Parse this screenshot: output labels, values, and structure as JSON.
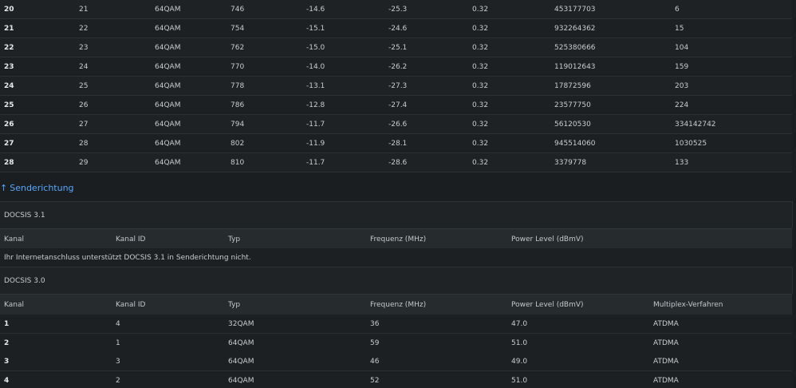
{
  "downstream_rows": [
    {
      "kanal": "20",
      "kanal_id": "21",
      "typ": "64QAM",
      "freq": "746",
      "power": "-14.6",
      "mse": "-25.3",
      "latency": "0.32",
      "corr": "453177703",
      "uncorr": "6"
    },
    {
      "kanal": "21",
      "kanal_id": "22",
      "typ": "64QAM",
      "freq": "754",
      "power": "-15.1",
      "mse": "-24.6",
      "latency": "0.32",
      "corr": "932264362",
      "uncorr": "15"
    },
    {
      "kanal": "22",
      "kanal_id": "23",
      "typ": "64QAM",
      "freq": "762",
      "power": "-15.0",
      "mse": "-25.1",
      "latency": "0.32",
      "corr": "525380666",
      "uncorr": "104"
    },
    {
      "kanal": "23",
      "kanal_id": "24",
      "typ": "64QAM",
      "freq": "770",
      "power": "-14.0",
      "mse": "-26.2",
      "latency": "0.32",
      "corr": "119012643",
      "uncorr": "159"
    },
    {
      "kanal": "24",
      "kanal_id": "25",
      "typ": "64QAM",
      "freq": "778",
      "power": "-13.1",
      "mse": "-27.3",
      "latency": "0.32",
      "corr": "17872596",
      "uncorr": "203"
    },
    {
      "kanal": "25",
      "kanal_id": "26",
      "typ": "64QAM",
      "freq": "786",
      "power": "-12.8",
      "mse": "-27.4",
      "latency": "0.32",
      "corr": "23577750",
      "uncorr": "224"
    },
    {
      "kanal": "26",
      "kanal_id": "27",
      "typ": "64QAM",
      "freq": "794",
      "power": "-11.7",
      "mse": "-26.6",
      "latency": "0.32",
      "corr": "56120530",
      "uncorr": "334142742"
    },
    {
      "kanal": "27",
      "kanal_id": "28",
      "typ": "64QAM",
      "freq": "802",
      "power": "-11.9",
      "mse": "-28.1",
      "latency": "0.32",
      "corr": "945514060",
      "uncorr": "1030525"
    },
    {
      "kanal": "28",
      "kanal_id": "29",
      "typ": "64QAM",
      "freq": "810",
      "power": "-11.7",
      "mse": "-28.6",
      "latency": "0.32",
      "corr": "3379778",
      "uncorr": "133"
    }
  ],
  "upstream": {
    "heading_arrow": "↑",
    "heading": "Senderichtung",
    "docsis31": {
      "title": "DOCSIS 3.1",
      "headers": {
        "kanal": "Kanal",
        "kanal_id": "Kanal ID",
        "typ": "Typ",
        "freq": "Frequenz (MHz)",
        "power": "Power Level (dBmV)"
      },
      "note": "Ihr Internetanschluss unterstützt DOCSIS 3.1 in Senderichtung nicht."
    },
    "docsis30": {
      "title": "DOCSIS 3.0",
      "headers": {
        "kanal": "Kanal",
        "kanal_id": "Kanal ID",
        "typ": "Typ",
        "freq": "Frequenz (MHz)",
        "power": "Power Level (dBmV)",
        "mux": "Multiplex-Verfahren"
      },
      "rows": [
        {
          "kanal": "1",
          "kanal_id": "4",
          "typ": "32QAM",
          "freq": "36",
          "power": "47.0",
          "mux": "ATDMA"
        },
        {
          "kanal": "2",
          "kanal_id": "1",
          "typ": "64QAM",
          "freq": "59",
          "power": "51.0",
          "mux": "ATDMA"
        },
        {
          "kanal": "3",
          "kanal_id": "3",
          "typ": "64QAM",
          "freq": "46",
          "power": "49.0",
          "mux": "ATDMA"
        },
        {
          "kanal": "4",
          "kanal_id": "2",
          "typ": "64QAM",
          "freq": "52",
          "power": "51.0",
          "mux": "ATDMA"
        }
      ]
    }
  }
}
